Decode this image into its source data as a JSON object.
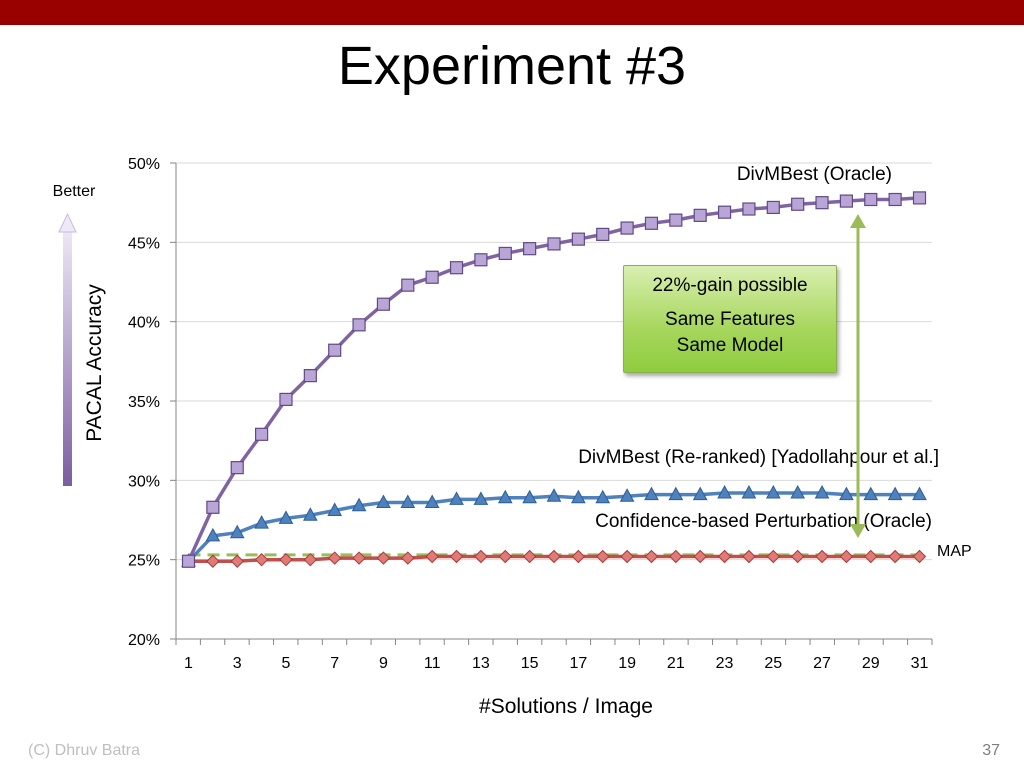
{
  "slide": {
    "title": "Experiment #3",
    "footer_left": "(C) Dhruv Batra",
    "page_number": "37"
  },
  "annotations": {
    "better": "Better",
    "gain_box": {
      "line1": "22%-gain possible",
      "line2": "Same Features",
      "line3": "Same Model"
    },
    "colors": {
      "top_bar": "#990000",
      "better_arrow": "#8064a2",
      "gain_arrow": "#9bbb59",
      "gain_box_fill": "#a6d65c"
    }
  },
  "chart_data": {
    "type": "line",
    "xlabel": "#Solutions / Image",
    "ylabel": "PACAL Accuracy",
    "ylim": [
      20,
      50
    ],
    "yticks": [
      "20%",
      "25%",
      "30%",
      "35%",
      "40%",
      "45%",
      "50%"
    ],
    "xlim": [
      1,
      31
    ],
    "xticks": [
      "1",
      "3",
      "5",
      "7",
      "9",
      "11",
      "13",
      "15",
      "17",
      "19",
      "21",
      "23",
      "25",
      "27",
      "29",
      "31"
    ],
    "grid": true,
    "x": [
      1,
      2,
      3,
      4,
      5,
      6,
      7,
      8,
      9,
      10,
      11,
      12,
      13,
      14,
      15,
      16,
      17,
      18,
      19,
      20,
      21,
      22,
      23,
      24,
      25,
      26,
      27,
      28,
      29,
      30,
      31
    ],
    "series": [
      {
        "name": "DivMBest (Oracle)",
        "color": "#8064a2",
        "marker": "square",
        "values": [
          24.9,
          28.3,
          30.8,
          32.9,
          35.1,
          36.6,
          38.2,
          39.8,
          41.1,
          42.3,
          42.8,
          43.4,
          43.9,
          44.3,
          44.6,
          44.9,
          45.2,
          45.5,
          45.9,
          46.2,
          46.4,
          46.7,
          46.9,
          47.1,
          47.2,
          47.4,
          47.5,
          47.6,
          47.7,
          47.7,
          47.8
        ]
      },
      {
        "name": "DivMBest (Re-ranked) [Yadollahpour et al.]",
        "color": "#4f81bd",
        "marker": "triangle",
        "values": [
          24.9,
          26.5,
          26.7,
          27.3,
          27.6,
          27.8,
          28.1,
          28.4,
          28.6,
          28.6,
          28.6,
          28.8,
          28.8,
          28.9,
          28.9,
          29.0,
          28.9,
          28.9,
          29.0,
          29.1,
          29.1,
          29.1,
          29.2,
          29.2,
          29.2,
          29.2,
          29.2,
          29.1,
          29.1,
          29.1,
          29.1
        ]
      },
      {
        "name": "Confidence-based Perturbation (Oracle)",
        "color": "#9bbb59",
        "marker": "none",
        "dashed": true,
        "values": [
          25.3,
          25.3,
          25.3,
          25.3,
          25.3,
          25.3,
          25.3,
          25.3,
          25.3,
          25.3,
          25.3,
          25.3,
          25.3,
          25.3,
          25.3,
          25.3,
          25.3,
          25.3,
          25.3,
          25.3,
          25.3,
          25.3,
          25.3,
          25.3,
          25.3,
          25.3,
          25.3,
          25.3,
          25.3,
          25.3,
          25.3
        ]
      },
      {
        "name": "MAP",
        "color": "#c0504d",
        "marker": "diamond",
        "values": [
          24.9,
          24.9,
          24.9,
          25.0,
          25.0,
          25.0,
          25.1,
          25.1,
          25.1,
          25.1,
          25.2,
          25.2,
          25.2,
          25.2,
          25.2,
          25.2,
          25.2,
          25.2,
          25.2,
          25.2,
          25.2,
          25.2,
          25.2,
          25.2,
          25.2,
          25.2,
          25.2,
          25.2,
          25.2,
          25.2,
          25.2
        ]
      }
    ]
  }
}
